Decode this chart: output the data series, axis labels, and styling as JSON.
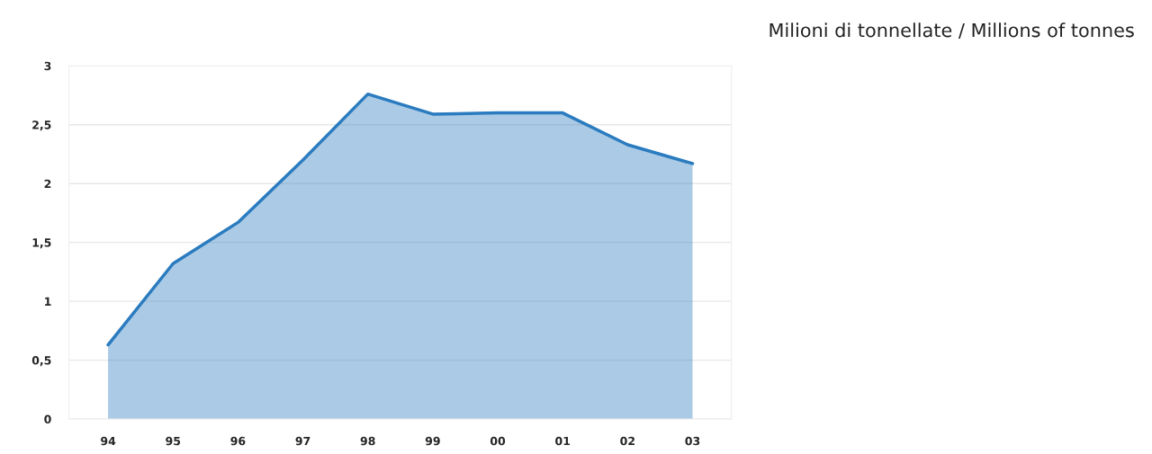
{
  "chart_data": {
    "type": "area",
    "ylabel": "Milioni di tonnellate / Millions of tonnes",
    "categories": [
      "94",
      "95",
      "96",
      "97",
      "98",
      "99",
      "00",
      "01",
      "02",
      "03"
    ],
    "series": [
      {
        "color": "#2a7bbf",
        "values": [
          0.63,
          1.32,
          1.67,
          2.2,
          2.76,
          2.59,
          2.6,
          2.6,
          2.33,
          2.17
        ]
      }
    ],
    "ylim": [
      0,
      3
    ],
    "yticks": [
      0,
      {
        "value": 0.5,
        "label": "0,5"
      },
      1,
      {
        "value": 1.5,
        "label": "1,5"
      },
      2,
      {
        "value": 2.5,
        "label": "2,5"
      },
      3
    ],
    "grid": "y"
  }
}
